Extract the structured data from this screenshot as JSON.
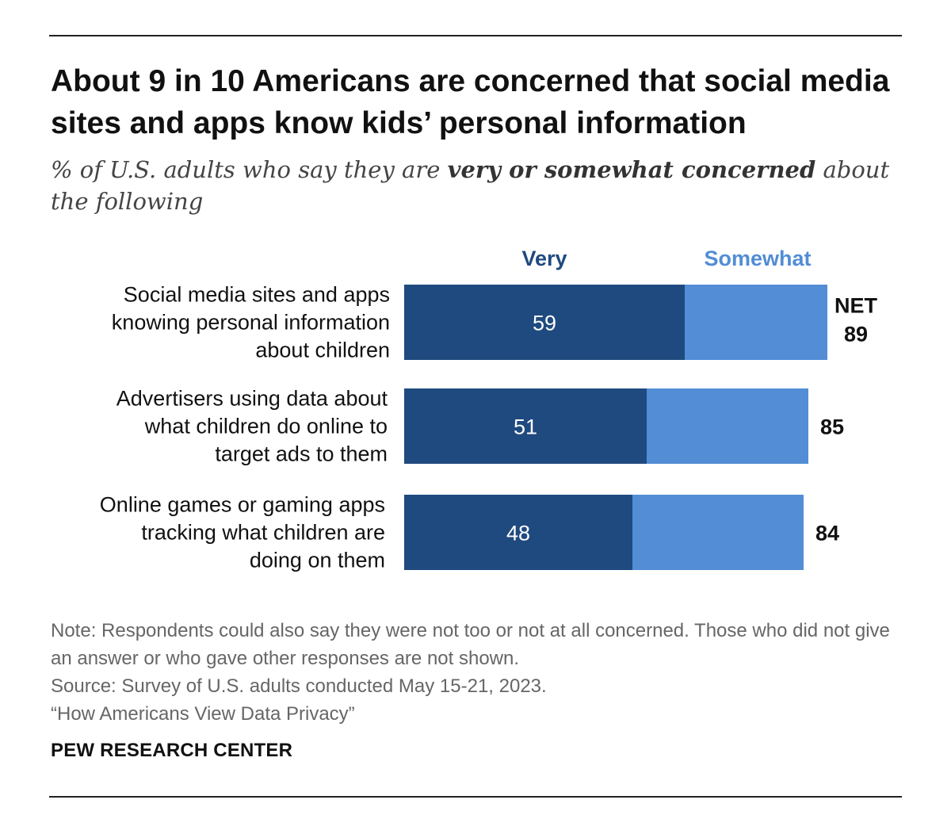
{
  "title": "About 9 in 10 Americans are concerned that social media sites and apps know kids’ personal information",
  "subtitle": {
    "prefix": "% of U.S. adults who say they are ",
    "emphasis": "very or somewhat concerned",
    "suffix": " about the following"
  },
  "chart_data": {
    "type": "bar",
    "orientation": "horizontal",
    "stacked": true,
    "legend": {
      "placement": "top",
      "entries": [
        "Very",
        "Somewhat"
      ]
    },
    "categories": [
      [
        "Social media sites and apps",
        "knowing personal information",
        "about children"
      ],
      [
        "Advertisers using data about",
        "what children do online to",
        "target ads to them"
      ],
      [
        "Online games or gaming apps",
        "tracking what children are",
        "doing on them"
      ]
    ],
    "series": [
      {
        "name": "Very",
        "values": [
          59,
          51,
          48
        ],
        "color": "#1f4a7f"
      },
      {
        "name": "Somewhat",
        "values": [
          30,
          34,
          36
        ],
        "color": "#528dd5"
      }
    ],
    "net": {
      "label": "NET",
      "values": [
        89,
        85,
        84
      ]
    },
    "xlim": [
      0,
      100
    ],
    "grid": false
  },
  "notes": {
    "note": "Note: Respondents could also say they were not too or not at all concerned. Those who did not give an answer or who gave other responses are not shown.",
    "source": "Source: Survey of U.S. adults conducted May 15-21, 2023.",
    "report": "“How Americans View Data Privacy”"
  },
  "brand": "PEW RESEARCH CENTER"
}
